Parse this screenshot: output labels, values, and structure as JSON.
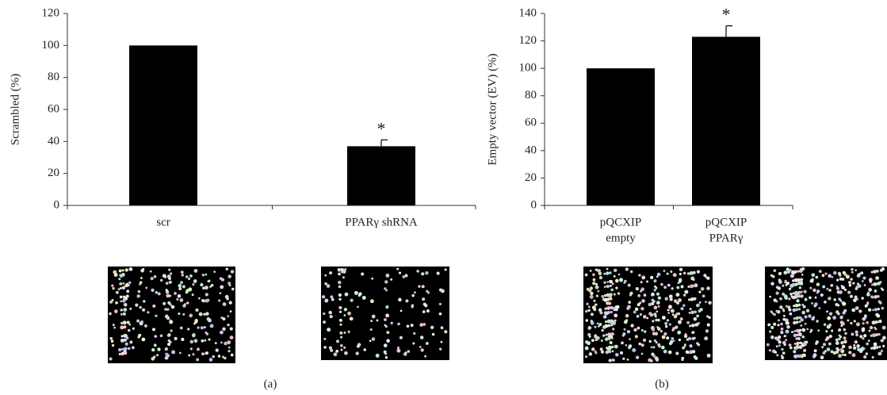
{
  "charts": [
    {
      "type": "bar",
      "y_label": "Scrambled (%)",
      "panel_label": "(a)",
      "categories": [
        [
          "scr"
        ],
        [
          "PPARγ shRNA"
        ]
      ],
      "values": [
        100,
        37
      ],
      "errors": [
        null,
        4
      ],
      "significance": [
        null,
        "*"
      ],
      "color": "#000000",
      "ylim": [
        0,
        120
      ],
      "yticks": [
        0,
        20,
        40,
        60,
        80,
        100,
        120
      ]
    },
    {
      "type": "bar",
      "y_label": "Empty vector (EV) (%)",
      "panel_label": "(b)",
      "categories": [
        [
          "pQCXIP",
          "empty"
        ],
        [
          "pQCXIP",
          "PPARγ"
        ]
      ],
      "values": [
        100,
        123
      ],
      "errors": [
        null,
        8
      ],
      "significance": [
        null,
        "*"
      ],
      "color": "#000000",
      "ylim": [
        0,
        140
      ],
      "yticks": [
        0,
        20,
        40,
        60,
        80,
        100,
        120,
        140
      ]
    }
  ]
}
